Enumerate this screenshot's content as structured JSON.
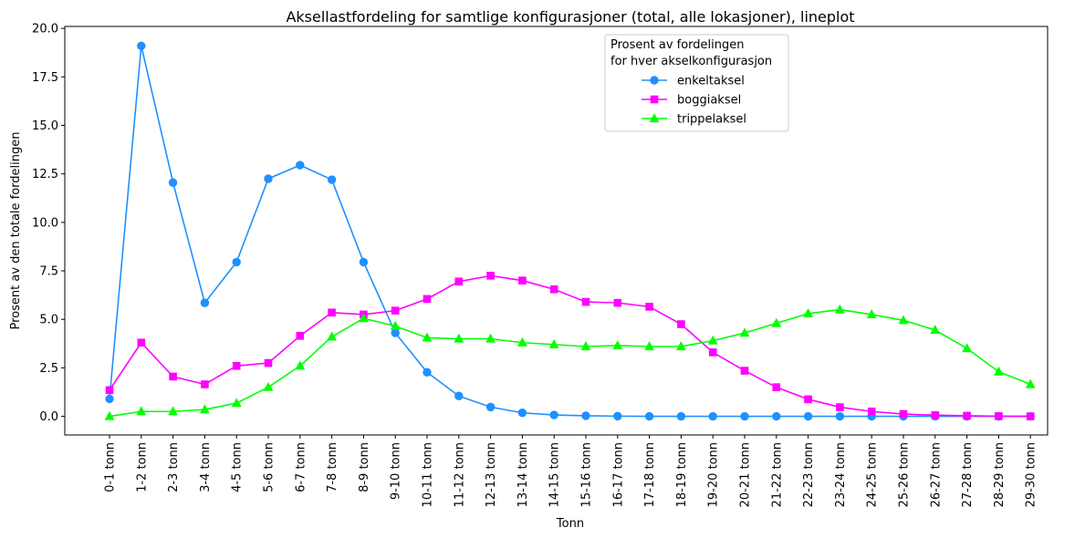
{
  "chart_data": {
    "type": "line",
    "title": "Aksellastfordeling for samtlige konfigurasjoner (total, alle lokasjoner), lineplot",
    "xlabel": "Tonn",
    "ylabel": "Prosent av den totale fordelingen",
    "ylim": [
      -0.96,
      20.1
    ],
    "yticks": [
      "0.0",
      "2.5",
      "5.0",
      "7.5",
      "10.0",
      "12.5",
      "15.0",
      "17.5",
      "20.0"
    ],
    "ytick_values": [
      0,
      2.5,
      5,
      7.5,
      10,
      12.5,
      15,
      17.5,
      20
    ],
    "grid": false,
    "legend": {
      "title_line1": "Prosent av fordelingen",
      "title_line2": "for hver akselkonfigurasjon",
      "placement": "upper center"
    },
    "categories": [
      "0-1 tonn",
      "1-2 tonn",
      "2-3 tonn",
      "3-4 tonn",
      "4-5 tonn",
      "5-6 tonn",
      "6-7 tonn",
      "7-8 tonn",
      "8-9 tonn",
      "9-10 tonn",
      "10-11 tonn",
      "11-12 tonn",
      "12-13 tonn",
      "13-14 tonn",
      "14-15 tonn",
      "15-16 tonn",
      "16-17 tonn",
      "17-18 tonn",
      "18-19 tonn",
      "19-20 tonn",
      "20-21 tonn",
      "21-22 tonn",
      "22-23 tonn",
      "23-24 tonn",
      "24-25 tonn",
      "25-26 tonn",
      "26-27 tonn",
      "27-28 tonn",
      "28-29 tonn",
      "29-30 tonn"
    ],
    "series": [
      {
        "name": "enkeltaksel",
        "color": "#1e90ff",
        "marker": "circle",
        "values": [
          0.9,
          19.1,
          12.05,
          5.85,
          7.95,
          12.25,
          12.95,
          12.2,
          7.95,
          4.3,
          2.27,
          1.05,
          0.48,
          0.18,
          0.07,
          0.03,
          0.01,
          0.0,
          0.0,
          0.0,
          0.0,
          0.0,
          0.0,
          0.0,
          0.0,
          0.0,
          0.0,
          0.0,
          0.0,
          0.0
        ]
      },
      {
        "name": "boggiaksel",
        "color": "#ff00ff",
        "marker": "square",
        "values": [
          1.35,
          3.8,
          2.05,
          1.65,
          2.6,
          2.75,
          4.15,
          5.35,
          5.25,
          5.45,
          6.05,
          6.95,
          7.25,
          7.0,
          6.55,
          5.9,
          5.85,
          5.65,
          4.75,
          3.3,
          2.35,
          1.5,
          0.88,
          0.47,
          0.25,
          0.12,
          0.06,
          0.03,
          0.01,
          0.0
        ]
      },
      {
        "name": "trippelaksel",
        "color": "#00ff00",
        "marker": "triangle",
        "values": [
          0.0,
          0.25,
          0.25,
          0.35,
          0.68,
          1.5,
          2.6,
          4.1,
          5.05,
          4.65,
          4.05,
          4.0,
          4.0,
          3.8,
          3.7,
          3.6,
          3.65,
          3.6,
          3.6,
          3.9,
          4.3,
          4.8,
          5.3,
          5.5,
          5.25,
          4.95,
          4.45,
          3.5,
          2.3,
          1.65
        ]
      }
    ]
  }
}
